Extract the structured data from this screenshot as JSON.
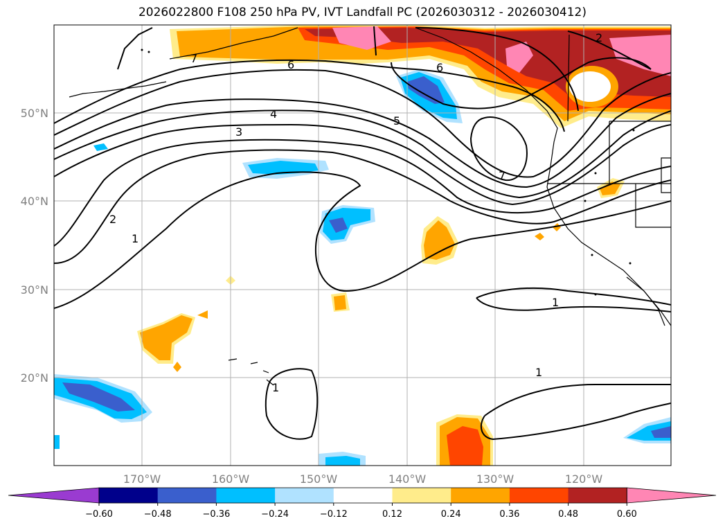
{
  "title": "2026022800 F108 250 hPa PV, IVT Landfall PC (2026030312 - 2026030412)",
  "lat_labels": [
    "50°N",
    "40°N",
    "30°N",
    "20°N"
  ],
  "lon_labels": [
    "170°W",
    "160°W",
    "150°W",
    "140°W",
    "130°W",
    "120°W"
  ],
  "colorbar": {
    "colors": [
      "#9a3bd1",
      "#00008b",
      "#3a5fcd",
      "#00bfff",
      "#b0e2ff",
      "#ffffff",
      "#ffec8b",
      "#ffa500",
      "#ff4500",
      "#b22222",
      "#ff86b4"
    ],
    "tick_labels": [
      "−0.60",
      "−0.48",
      "−0.36",
      "−0.24",
      "−0.12",
      "0.12",
      "0.24",
      "0.36",
      "0.48",
      "0.60"
    ]
  },
  "contour_labels": [
    "7",
    "6",
    "6",
    "4",
    "3",
    "5",
    "7",
    "2",
    "2",
    "1",
    "1",
    "1",
    "1"
  ]
}
